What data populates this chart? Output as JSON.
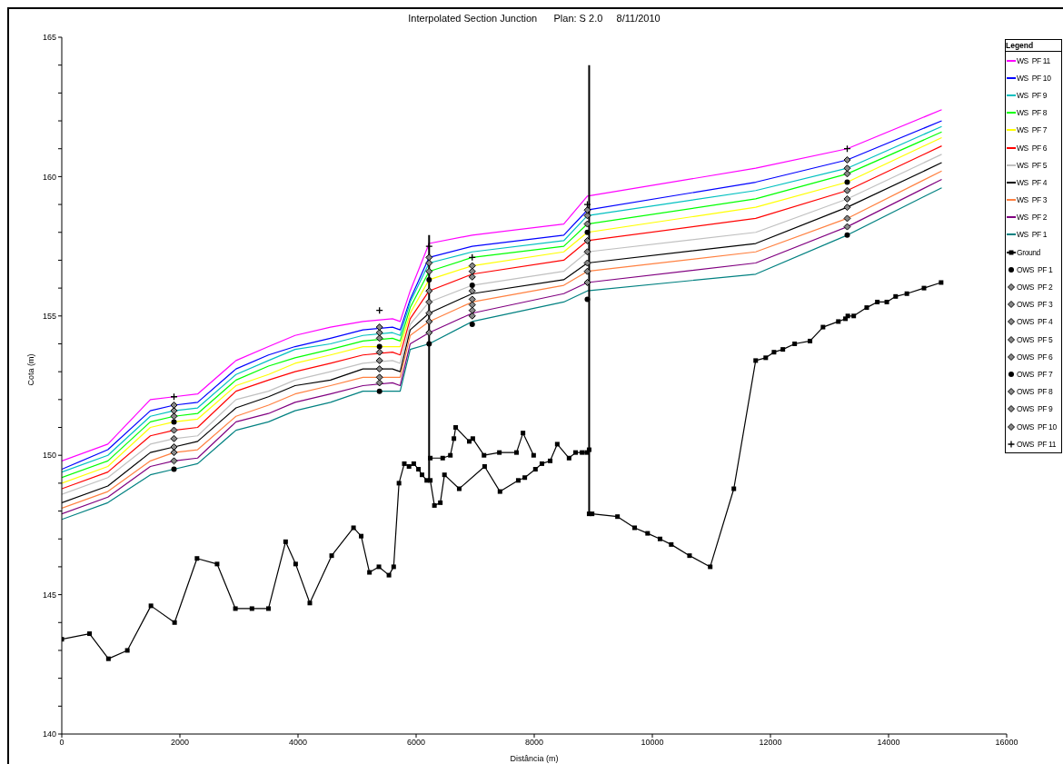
{
  "chart_data": {
    "type": "line",
    "title": "Interpolated Section Junction      Plan: S 2.0     8/11/2010",
    "xlabel": "Distância (m)",
    "ylabel": "Cota (m)",
    "legend_title": "Legend",
    "legend": "right",
    "grid": false,
    "xlim": [
      0,
      16000
    ],
    "xticks": [
      0,
      2000,
      4000,
      6000,
      8000,
      10000,
      12000,
      14000,
      16000
    ],
    "ylim": [
      140,
      165
    ],
    "yticks": [
      140,
      {
        "value": 141,
        "label": null
      },
      {
        "value": 142,
        "label": null
      },
      {
        "value": 143,
        "label": null
      },
      {
        "value": 144,
        "label": null
      },
      145,
      {
        "value": 146,
        "label": null
      },
      {
        "value": 147,
        "label": null
      },
      {
        "value": 148,
        "label": null
      },
      {
        "value": 149,
        "label": null
      },
      150,
      {
        "value": 151,
        "label": null
      },
      {
        "value": 152,
        "label": null
      },
      {
        "value": 153,
        "label": null
      },
      {
        "value": 154,
        "label": null
      },
      155,
      {
        "value": 156,
        "label": null
      },
      {
        "value": 157,
        "label": null
      },
      {
        "value": 158,
        "label": null
      },
      {
        "value": 159,
        "label": null
      },
      160,
      {
        "value": 161,
        "label": null
      },
      {
        "value": 162,
        "label": null
      },
      {
        "value": 163,
        "label": null
      },
      {
        "value": 164,
        "label": null
      },
      165
    ],
    "x": [
      0,
      780,
      1500,
      1900,
      2300,
      2950,
      3500,
      3950,
      4550,
      5100,
      5600,
      5730,
      5900,
      6220,
      6950,
      8500,
      8900,
      11750,
      13300,
      14900
    ],
    "series": [
      {
        "name": "WS  PF 11",
        "color": "#ff00ff",
        "marker": "none",
        "values": [
          149.8,
          150.4,
          152.0,
          152.1,
          152.2,
          153.4,
          153.9,
          154.3,
          154.6,
          154.8,
          154.9,
          154.8,
          155.9,
          157.6,
          157.9,
          158.3,
          159.3,
          160.3,
          161.0,
          162.4
        ]
      },
      {
        "name": "WS  PF 10",
        "color": "#0000ff",
        "marker": "none",
        "values": [
          149.5,
          150.2,
          151.6,
          151.8,
          151.9,
          153.1,
          153.6,
          153.9,
          154.2,
          154.5,
          154.6,
          154.5,
          155.6,
          157.1,
          157.5,
          157.9,
          158.8,
          159.8,
          160.6,
          162.0
        ]
      },
      {
        "name": "WS  PF 9",
        "color": "#00c0c0",
        "marker": "none",
        "values": [
          149.4,
          150.0,
          151.4,
          151.6,
          151.7,
          152.9,
          153.4,
          153.8,
          154.0,
          154.3,
          154.4,
          154.3,
          155.5,
          156.9,
          157.3,
          157.7,
          158.6,
          159.5,
          160.3,
          161.8
        ]
      },
      {
        "name": "WS  PF 8",
        "color": "#00ff00",
        "marker": "none",
        "values": [
          149.2,
          149.8,
          151.2,
          151.4,
          151.5,
          152.7,
          153.2,
          153.5,
          153.8,
          154.1,
          154.2,
          154.1,
          155.3,
          156.6,
          157.1,
          157.5,
          158.3,
          159.2,
          160.1,
          161.6
        ]
      },
      {
        "name": "WS  PF 7",
        "color": "#ffff00",
        "marker": "none",
        "values": [
          149.0,
          149.6,
          151.0,
          151.2,
          151.3,
          152.5,
          152.9,
          153.3,
          153.6,
          153.9,
          153.9,
          153.9,
          155.1,
          156.3,
          156.8,
          157.3,
          158.0,
          158.9,
          159.8,
          161.4
        ]
      },
      {
        "name": "WS  PF 6",
        "color": "#ff0000",
        "marker": "none",
        "values": [
          148.8,
          149.4,
          150.7,
          150.9,
          151.0,
          152.3,
          152.7,
          153.0,
          153.3,
          153.6,
          153.7,
          153.6,
          154.9,
          155.9,
          156.5,
          157.0,
          157.7,
          158.5,
          159.5,
          161.1
        ]
      },
      {
        "name": "WS  PF 5",
        "color": "#c0c0c0",
        "marker": "none",
        "values": [
          148.6,
          149.2,
          150.4,
          150.6,
          150.7,
          152.0,
          152.3,
          152.7,
          153.0,
          153.3,
          153.4,
          153.3,
          154.7,
          155.5,
          156.1,
          156.6,
          157.3,
          158.0,
          159.2,
          160.8
        ]
      },
      {
        "name": "WS  PF 4",
        "color": "#000000",
        "marker": "none",
        "values": [
          148.3,
          148.9,
          150.1,
          150.3,
          150.5,
          151.7,
          152.1,
          152.5,
          152.7,
          153.1,
          153.1,
          153.0,
          154.5,
          155.1,
          155.8,
          156.3,
          156.9,
          157.6,
          158.9,
          160.5
        ]
      },
      {
        "name": "WS  PF 3",
        "color": "#ff8040",
        "marker": "none",
        "values": [
          148.1,
          148.7,
          149.8,
          150.1,
          150.2,
          151.4,
          151.8,
          152.2,
          152.5,
          152.8,
          152.8,
          152.8,
          154.3,
          154.8,
          155.5,
          156.1,
          156.6,
          157.3,
          158.5,
          160.2
        ]
      },
      {
        "name": "WS  PF 2",
        "color": "#800080",
        "marker": "none",
        "values": [
          147.9,
          148.5,
          149.6,
          149.8,
          149.9,
          151.2,
          151.5,
          151.9,
          152.2,
          152.5,
          152.6,
          152.5,
          154.0,
          154.4,
          155.1,
          155.8,
          156.2,
          156.9,
          158.2,
          159.9
        ]
      },
      {
        "name": "WS  PF 1",
        "color": "#008080",
        "marker": "none",
        "values": [
          147.7,
          148.3,
          149.3,
          149.5,
          149.7,
          150.9,
          151.2,
          151.6,
          151.9,
          152.3,
          152.3,
          152.3,
          153.8,
          154.0,
          154.8,
          155.5,
          155.9,
          156.5,
          157.9,
          159.6
        ]
      },
      {
        "name": "Ground",
        "color": "#000000",
        "marker": "square",
        "x": [
          0,
          470,
          790,
          1110,
          1510,
          1910,
          2290,
          2630,
          2940,
          3220,
          3500,
          3790,
          3960,
          4200,
          4570,
          4940,
          5070,
          5210,
          5370,
          5540,
          5620,
          5710,
          5800,
          5880,
          5960,
          6040,
          6100,
          6180,
          6240,
          6310,
          6410,
          6480,
          6730,
          7160,
          7420,
          7730,
          7840,
          8020,
          8130,
          8270,
          8390,
          8590,
          8700,
          8810,
          8890,
          8930,
          null,
          6240,
          6450,
          6580,
          6640,
          6670,
          6900,
          6960,
          7150,
          7410,
          7700,
          7810,
          7990,
          null,
          8930,
          8980,
          9410,
          9700,
          9920,
          10130,
          10320,
          10630,
          10980,
          11380,
          11750,
          11920,
          12060,
          12210,
          12410,
          12670,
          12890,
          13150,
          13270,
          13310,
          13410,
          13630,
          13810,
          13970,
          14120,
          14310,
          14600,
          14890
        ],
        "values": [
          143.4,
          143.6,
          142.7,
          143.0,
          144.6,
          144.0,
          146.3,
          146.1,
          144.5,
          144.5,
          144.5,
          146.9,
          146.1,
          144.7,
          146.4,
          147.4,
          147.1,
          145.8,
          146.0,
          145.7,
          146.0,
          149.0,
          149.7,
          149.6,
          149.7,
          149.5,
          149.3,
          149.1,
          149.1,
          148.2,
          148.3,
          149.3,
          148.8,
          149.6,
          148.7,
          149.1,
          149.2,
          149.5,
          149.7,
          149.8,
          150.4,
          149.9,
          150.1,
          150.1,
          150.1,
          150.2,
          null,
          149.9,
          149.9,
          150.0,
          150.6,
          151.0,
          150.5,
          150.6,
          150.0,
          150.1,
          150.1,
          150.8,
          150.0,
          null,
          147.9,
          147.9,
          147.8,
          147.4,
          147.2,
          147.0,
          146.8,
          146.4,
          146.0,
          148.8,
          153.4,
          153.5,
          153.7,
          153.8,
          154.0,
          154.1,
          154.6,
          154.8,
          154.9,
          155.0,
          155.0,
          155.3,
          155.5,
          155.5,
          155.7,
          155.8,
          156.0,
          156.2
        ]
      },
      {
        "color": "#000000",
        "marker": "none",
        "x": [
          6220,
          6220
        ],
        "values": [
          149.1,
          157.9
        ]
      },
      {
        "color": "#000000",
        "marker": "none",
        "x": [
          8930,
          8930
        ],
        "values": [
          147.9,
          164.0
        ]
      },
      {
        "name": "OWS  PF 1",
        "type": "scatter",
        "color": "#000000",
        "marker": "circle",
        "x": [
          1900,
          5380,
          6220,
          6950,
          8900,
          13300
        ],
        "values": [
          149.5,
          152.3,
          154.0,
          154.7,
          155.6,
          157.9
        ]
      },
      {
        "name": "OWS  PF 2",
        "type": "scatter",
        "color": "#000000",
        "marker": "diamond",
        "x": [
          1900,
          5380,
          6220,
          6950,
          8900,
          13300
        ],
        "values": [
          149.8,
          152.6,
          154.4,
          155.0,
          156.2,
          158.2
        ]
      },
      {
        "name": "OWS  PF 3",
        "type": "scatter",
        "color": "#000000",
        "marker": "diamond",
        "x": [
          1900,
          5380,
          6220,
          6950,
          8900,
          13300
        ],
        "values": [
          150.1,
          152.8,
          154.8,
          155.2,
          156.6,
          158.5
        ]
      },
      {
        "name": "OWS  PF 4",
        "type": "scatter",
        "color": "#000000",
        "marker": "diamond",
        "x": [
          1900,
          5380,
          6220,
          6950,
          8900,
          13300
        ],
        "values": [
          150.3,
          153.1,
          155.1,
          155.4,
          156.9,
          158.9
        ]
      },
      {
        "name": "OWS  PF 5",
        "type": "scatter",
        "color": "#000000",
        "marker": "diamond",
        "x": [
          1900,
          5380,
          6220,
          6950,
          8900,
          13300
        ],
        "values": [
          150.6,
          153.4,
          155.5,
          155.6,
          157.3,
          159.2
        ]
      },
      {
        "name": "OWS  PF 6",
        "type": "scatter",
        "color": "#000000",
        "marker": "diamond",
        "x": [
          1900,
          5380,
          6220,
          6950,
          8900,
          13300
        ],
        "values": [
          150.9,
          153.7,
          155.9,
          155.9,
          157.7,
          159.5
        ]
      },
      {
        "name": "OWS  PF 7",
        "type": "scatter",
        "color": "#000000",
        "marker": "circle",
        "x": [
          1900,
          5380,
          6220,
          6950,
          8900,
          13300
        ],
        "values": [
          151.2,
          153.9,
          156.3,
          156.1,
          158.0,
          159.8
        ]
      },
      {
        "name": "OWS  PF 8",
        "type": "scatter",
        "color": "#000000",
        "marker": "diamond",
        "x": [
          1900,
          5380,
          6220,
          6950,
          8900,
          13300
        ],
        "values": [
          151.4,
          154.2,
          156.6,
          156.4,
          158.3,
          160.1
        ]
      },
      {
        "name": "OWS  PF 9",
        "type": "scatter",
        "color": "#000000",
        "marker": "diamond",
        "x": [
          1900,
          5380,
          6220,
          6950,
          8900,
          13300
        ],
        "values": [
          151.6,
          154.4,
          156.9,
          156.6,
          158.6,
          160.3
        ]
      },
      {
        "name": "OWS  PF 10",
        "type": "scatter",
        "color": "#000000",
        "marker": "diamond",
        "x": [
          1900,
          5380,
          6220,
          6950,
          8900,
          13300
        ],
        "values": [
          151.8,
          154.6,
          157.1,
          156.8,
          158.8,
          160.6
        ]
      },
      {
        "name": "OWS  PF 11",
        "type": "scatter",
        "color": "#000000",
        "marker": "cross",
        "x": [
          1900,
          5380,
          6220,
          6950,
          8900,
          13300
        ],
        "values": [
          152.1,
          155.2,
          157.5,
          157.1,
          159.0,
          161.0
        ]
      }
    ]
  }
}
